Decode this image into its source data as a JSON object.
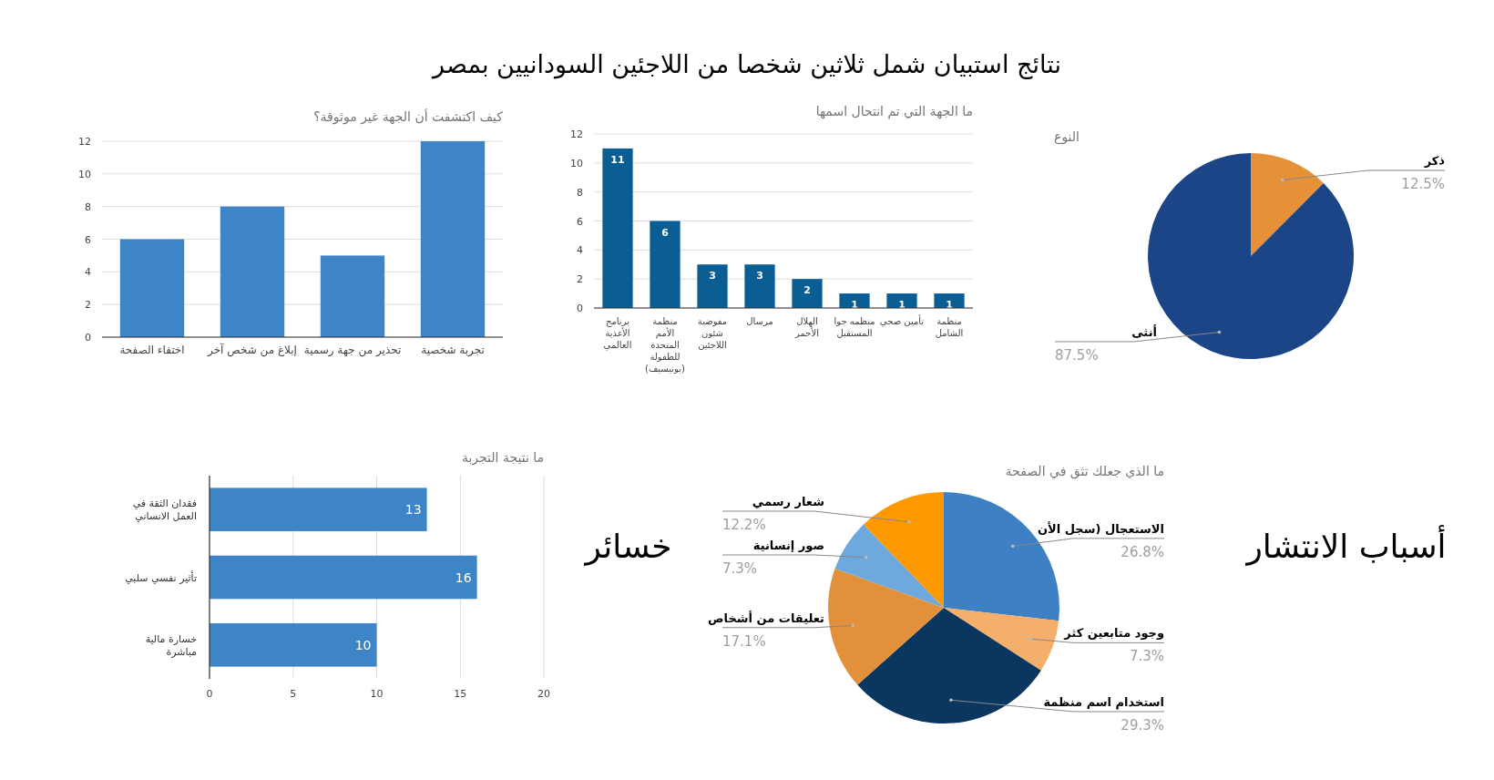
{
  "chart_data": [
    {
      "type": "other",
      "title": "نتائج استبيان شمل ثلاثين شخصا من اللاجئين السودانيين بمصر"
    },
    {
      "type": "bar",
      "title": "كيف اكتشفت أن الجهة غير موثوقة؟",
      "categories": [
        "اختفاء الصفحة",
        "إبلاغ من شخص آخر",
        "تحذير من جهة رسمية",
        "تجربة شخصية"
      ],
      "values": [
        6,
        8,
        5,
        12
      ],
      "color": "#3d85c6",
      "ylim": [
        0,
        12
      ],
      "yticks": [
        0,
        2,
        4,
        6,
        8,
        10,
        12
      ],
      "grid": "y"
    },
    {
      "type": "bar",
      "title": "ما الجهة التي تم انتحال اسمها",
      "categories": [
        "برنامج الأغذية العالمي",
        "منظمة الأمم المتحدة للطفولة (يونيسيف)",
        "مفوضية شئون اللاجئين",
        "مرسال",
        "الهلال الأحمر",
        "منظمه حوا المستقبل",
        "تأمين صحي",
        "منظمة الشامل"
      ],
      "values": [
        11,
        6,
        3,
        3,
        2,
        1,
        1,
        1
      ],
      "color": "#0b5e94",
      "ylim": [
        0,
        12
      ],
      "yticks": [
        0,
        2,
        4,
        6,
        8,
        10,
        12
      ],
      "grid": "y",
      "data_labels": true
    },
    {
      "type": "pie",
      "title": "النوع",
      "categories": [
        "ذكر",
        "أنثى"
      ],
      "values": [
        12.5,
        87.5
      ],
      "colors": [
        "#e69138",
        "#1c4587"
      ],
      "value_labels": [
        "12.5%",
        "87.5%"
      ]
    },
    {
      "type": "bar",
      "orientation": "horizontal",
      "title": "ما نتيجة التجربة",
      "categories": [
        "فقدان الثقة في العمل الانساني",
        "تأثير نفسي سلبي",
        "خسارة مالية مباشرة"
      ],
      "values": [
        13,
        16,
        10
      ],
      "color": "#3d85c6",
      "xlim": [
        0,
        20
      ],
      "xticks": [
        0,
        5,
        10,
        15,
        20
      ],
      "grid": "x",
      "data_labels": true,
      "annotations": [
        "خسائر"
      ]
    },
    {
      "type": "pie",
      "title": "ما الذي جعلك تثق في الصفحة",
      "categories": [
        "الاستعجال (سجل الأن",
        "وجود متابعين كثر",
        "استخدام اسم منظمة",
        "تعليقات من أشخاص",
        "صور إنسانية",
        "شعار رسمي"
      ],
      "values": [
        26.8,
        7.3,
        29.3,
        17.1,
        7.3,
        12.2
      ],
      "colors": [
        "#3d80c4",
        "#f4b06a",
        "#0b365f",
        "#e2913a",
        "#6fa8dc",
        "#ff9900"
      ],
      "value_labels": [
        "26.8%",
        "7.3%",
        "29.3%",
        "17.1%",
        "7.3%",
        "12.2%"
      ],
      "annotations": [
        "أسباب الانتشار"
      ]
    }
  ]
}
